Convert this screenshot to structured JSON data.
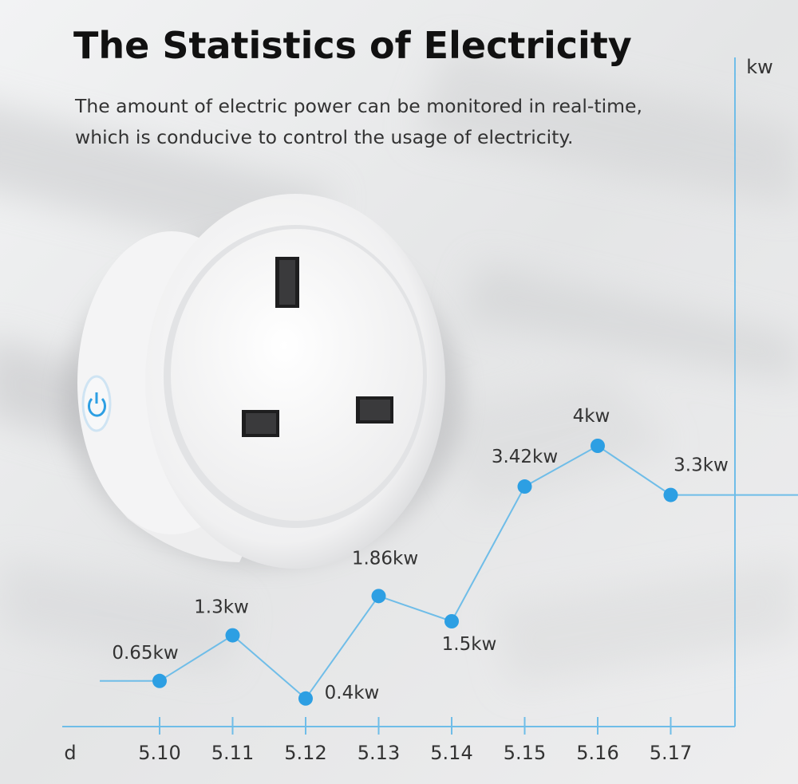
{
  "header": {
    "title": "The Statistics of Electricity",
    "subtitle_line1": "The amount of electric power can be monitored in real-time,",
    "subtitle_line2": "which is conducive to control the usage of electricity."
  },
  "colors": {
    "accent": "#2d9fe3",
    "line": "#6fbde8",
    "title": "#111111",
    "text": "#333333"
  },
  "product": {
    "icon": "power-icon"
  },
  "chart_data": {
    "type": "line",
    "xlabel": "d",
    "ylabel": "kw",
    "x": [
      "5.10",
      "5.11",
      "5.12",
      "5.13",
      "5.14",
      "5.15",
      "5.16",
      "5.17"
    ],
    "series": [
      {
        "values": [
          0.65,
          1.3,
          0.4,
          1.86,
          1.5,
          3.42,
          4,
          3.3
        ],
        "labels": [
          "0.65kw",
          "1.3kw",
          "0.4kw",
          "1.86kw",
          "1.5kw",
          "3.42kw",
          "4kw",
          "3.3kw"
        ]
      }
    ],
    "ylim": [
      0,
      4.5
    ],
    "grid": false,
    "legend": "none"
  }
}
